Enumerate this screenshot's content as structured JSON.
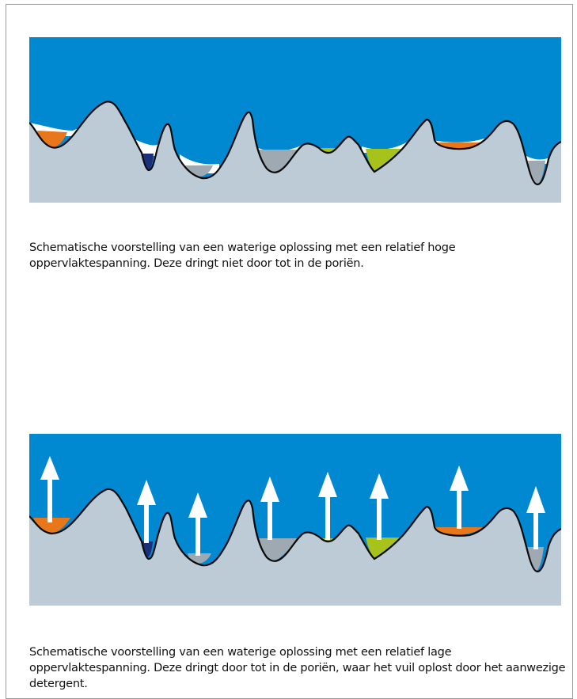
{
  "colors": {
    "liquid": "#0088d1",
    "surface": "#bccbd6",
    "outline": "#0a0a0a",
    "air_gap": "#ffffff",
    "dirt_orange": "#e8761a",
    "dirt_navy": "#1c2f7a",
    "dirt_grey": "#9ea9b1",
    "dirt_green": "#a7c21b",
    "arrow": "#ffffff"
  },
  "diagram_top": {
    "description_key": "high-surface-tension",
    "caption": "Schematische voorstelling van een waterige oplossing met een relatief hoge oppervlaktespanning. Deze dringt niet door tot in de poriën."
  },
  "diagram_bottom": {
    "description_key": "low-surface-tension",
    "caption": "Schematische voorstelling van een waterige oplossing met een relatief lage oppervlaktespanning. Deze dringt door tot in de poriën, waar het vuil oplost door het aanwezige detergent."
  }
}
